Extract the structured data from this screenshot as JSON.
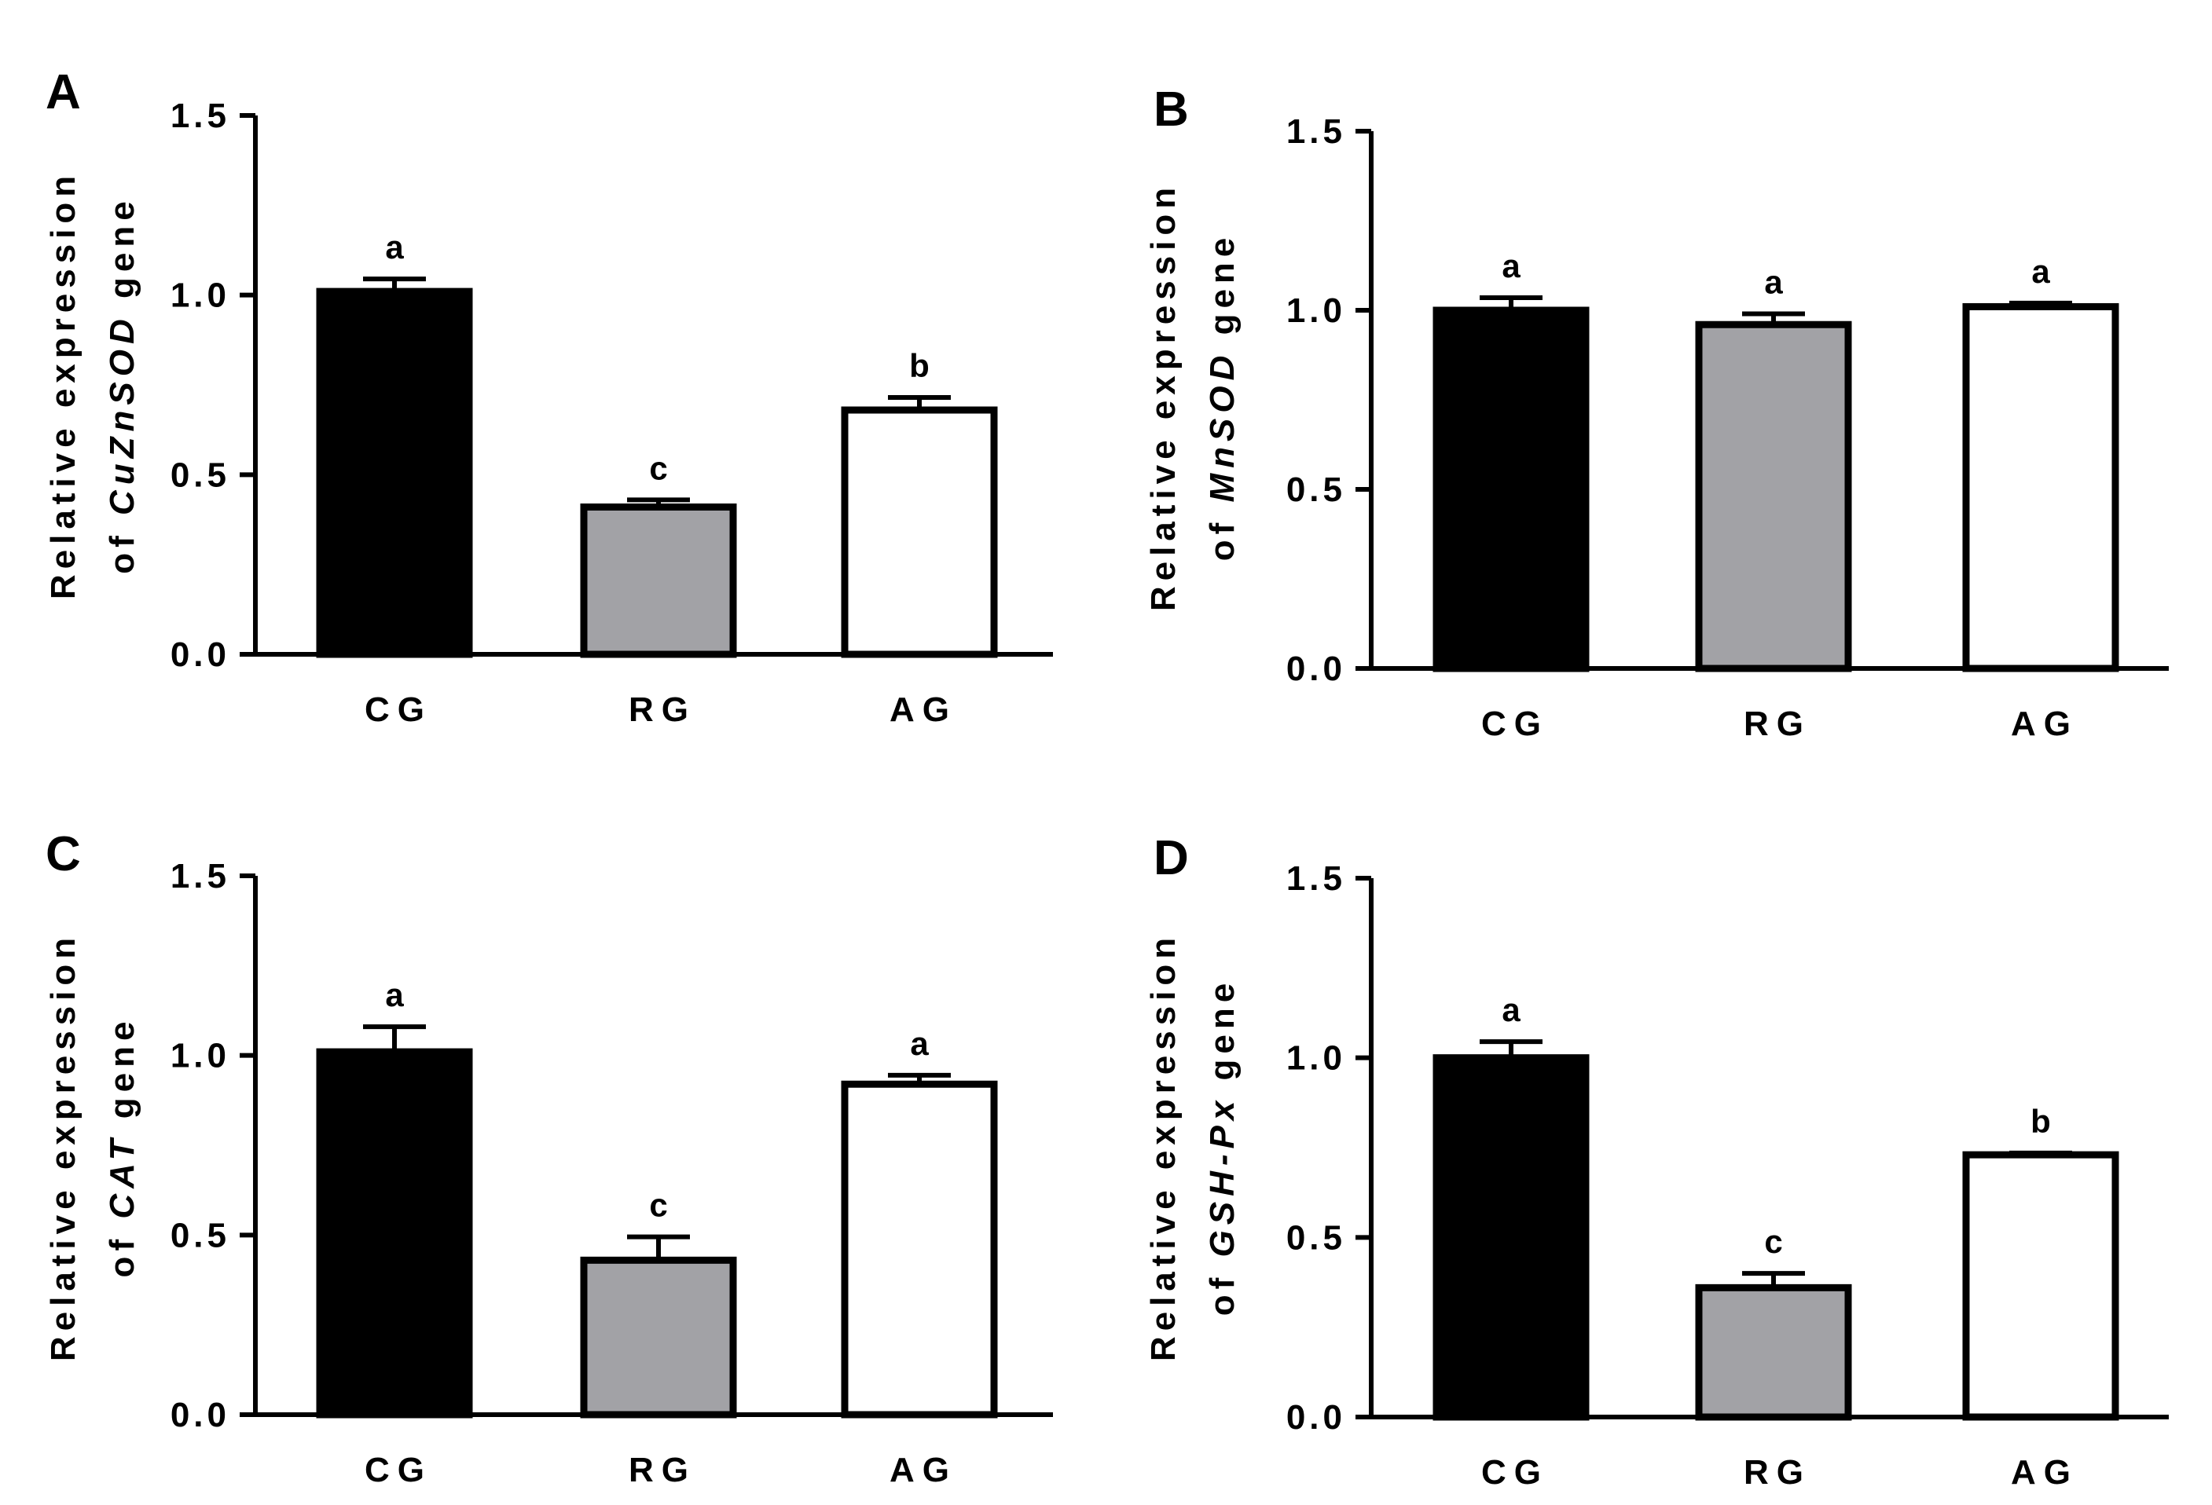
{
  "figure": {
    "chart_data": [
      {
        "type": "bar",
        "panel": "A",
        "title": "",
        "ylabel": [
          "Relative expression",
          "of",
          "CuZnSOD",
          "gene"
        ],
        "xlabel": "",
        "categories": [
          "CG",
          "RG",
          "AG"
        ],
        "values": [
          1.01,
          0.41,
          0.68
        ],
        "errors": [
          0.035,
          0.02,
          0.035
        ],
        "significance": [
          "a",
          "c",
          "b"
        ],
        "fills": [
          "#000000",
          "#a2a2a6",
          "#ffffff"
        ],
        "ylim": [
          0,
          1.5
        ],
        "yticks": [
          0.0,
          0.5,
          1.0,
          1.5
        ],
        "ytick_labels": [
          "0.0",
          "0.5",
          "1.0",
          "1.5"
        ]
      },
      {
        "type": "bar",
        "panel": "B",
        "title": "",
        "ylabel": [
          "Relative expression",
          "of",
          "MnSOD",
          "gene"
        ],
        "xlabel": "",
        "categories": [
          "CG",
          "RG",
          "AG"
        ],
        "values": [
          1.0,
          0.96,
          1.01
        ],
        "errors": [
          0.035,
          0.03,
          0.01
        ],
        "significance": [
          "a",
          "a",
          "a"
        ],
        "fills": [
          "#000000",
          "#a2a2a6",
          "#ffffff"
        ],
        "ylim": [
          0,
          1.5
        ],
        "yticks": [
          0.0,
          0.5,
          1.0,
          1.5
        ],
        "ytick_labels": [
          "0.0",
          "0.5",
          "1.0",
          "1.5"
        ]
      },
      {
        "type": "bar",
        "panel": "C",
        "title": "",
        "ylabel": [
          "Relative expression",
          "of",
          "CAT",
          "gene"
        ],
        "xlabel": "",
        "categories": [
          "CG",
          "RG",
          "AG"
        ],
        "values": [
          1.01,
          0.43,
          0.92
        ],
        "errors": [
          0.07,
          0.065,
          0.025
        ],
        "significance": [
          "a",
          "c",
          "a"
        ],
        "fills": [
          "#000000",
          "#a2a2a6",
          "#ffffff"
        ],
        "ylim": [
          0,
          1.5
        ],
        "yticks": [
          0.0,
          0.5,
          1.0,
          1.5
        ],
        "ytick_labels": [
          "0.0",
          "0.5",
          "1.0",
          "1.5"
        ]
      },
      {
        "type": "bar",
        "panel": "D",
        "title": "",
        "ylabel": [
          "Relative expression",
          "of",
          "GSH-Px",
          "gene"
        ],
        "xlabel": "",
        "categories": [
          "CG",
          "RG",
          "AG"
        ],
        "values": [
          1.0,
          0.36,
          0.73
        ],
        "errors": [
          0.045,
          0.04,
          0.005
        ],
        "significance": [
          "a",
          "c",
          "b"
        ],
        "fills": [
          "#000000",
          "#a2a2a6",
          "#ffffff"
        ],
        "ylim": [
          0,
          1.5
        ],
        "yticks": [
          0.0,
          0.5,
          1.0,
          1.5
        ],
        "ytick_labels": [
          "0.0",
          "0.5",
          "1.0",
          "1.5"
        ]
      }
    ]
  }
}
